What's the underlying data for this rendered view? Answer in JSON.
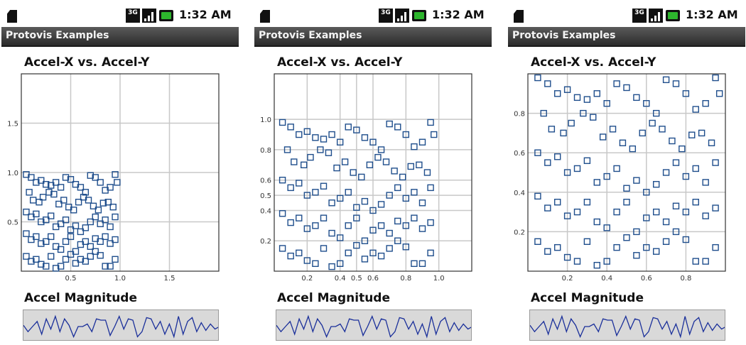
{
  "status_bar": {
    "time": "1:32 AM",
    "network": "3G",
    "icons": [
      "sd-card-icon",
      "network-3g-icon",
      "signal-icon",
      "battery-charging-icon"
    ]
  },
  "app_title": "Protovis Examples",
  "scatter_title": "Accel-X vs. Accel-Y",
  "accel_title": "Accel Magnitude",
  "colors": {
    "mark": "#1f4e8c",
    "grid": "#c8c8c8",
    "title_bar_top": "#5a5a5a",
    "title_bar_bottom": "#2c2c2c",
    "strip_background": "#d9d9d9"
  },
  "chart_data": [
    {
      "type": "scatter",
      "title": "Accel-X vs. Accel-Y",
      "xlim": [
        0,
        2
      ],
      "ylim": [
        0,
        2
      ],
      "xticks": [
        0.5,
        1.0,
        1.5
      ],
      "yticks": [
        0.5,
        1.0,
        1.5
      ],
      "xtick_labels": [
        "0.5",
        "1.0",
        "1.5"
      ],
      "ytick_labels": [
        "0.5",
        "1.0",
        "1.5"
      ],
      "grid": true,
      "marker": "square",
      "points": [
        [
          0.05,
          0.98
        ],
        [
          0.1,
          0.95
        ],
        [
          0.15,
          0.9
        ],
        [
          0.2,
          0.92
        ],
        [
          0.25,
          0.88
        ],
        [
          0.3,
          0.87
        ],
        [
          0.35,
          0.9
        ],
        [
          0.4,
          0.85
        ],
        [
          0.45,
          0.95
        ],
        [
          0.5,
          0.93
        ],
        [
          0.55,
          0.88
        ],
        [
          0.6,
          0.85
        ],
        [
          0.65,
          0.8
        ],
        [
          0.7,
          0.97
        ],
        [
          0.75,
          0.95
        ],
        [
          0.8,
          0.9
        ],
        [
          0.85,
          0.82
        ],
        [
          0.9,
          0.85
        ],
        [
          0.95,
          0.98
        ],
        [
          0.97,
          0.9
        ],
        [
          0.08,
          0.8
        ],
        [
          0.12,
          0.72
        ],
        [
          0.18,
          0.7
        ],
        [
          0.22,
          0.75
        ],
        [
          0.28,
          0.8
        ],
        [
          0.33,
          0.78
        ],
        [
          0.38,
          0.68
        ],
        [
          0.43,
          0.72
        ],
        [
          0.48,
          0.65
        ],
        [
          0.53,
          0.62
        ],
        [
          0.58,
          0.7
        ],
        [
          0.63,
          0.75
        ],
        [
          0.68,
          0.72
        ],
        [
          0.73,
          0.66
        ],
        [
          0.78,
          0.62
        ],
        [
          0.83,
          0.69
        ],
        [
          0.88,
          0.7
        ],
        [
          0.93,
          0.65
        ],
        [
          0.05,
          0.6
        ],
        [
          0.1,
          0.55
        ],
        [
          0.15,
          0.58
        ],
        [
          0.2,
          0.5
        ],
        [
          0.25,
          0.52
        ],
        [
          0.3,
          0.56
        ],
        [
          0.35,
          0.45
        ],
        [
          0.4,
          0.48
        ],
        [
          0.45,
          0.52
        ],
        [
          0.5,
          0.42
        ],
        [
          0.55,
          0.46
        ],
        [
          0.6,
          0.4
        ],
        [
          0.65,
          0.44
        ],
        [
          0.7,
          0.5
        ],
        [
          0.75,
          0.55
        ],
        [
          0.8,
          0.48
        ],
        [
          0.85,
          0.52
        ],
        [
          0.9,
          0.45
        ],
        [
          0.95,
          0.55
        ],
        [
          0.05,
          0.38
        ],
        [
          0.1,
          0.32
        ],
        [
          0.15,
          0.35
        ],
        [
          0.2,
          0.28
        ],
        [
          0.25,
          0.3
        ],
        [
          0.3,
          0.35
        ],
        [
          0.35,
          0.25
        ],
        [
          0.4,
          0.22
        ],
        [
          0.45,
          0.3
        ],
        [
          0.5,
          0.35
        ],
        [
          0.55,
          0.2
        ],
        [
          0.6,
          0.27
        ],
        [
          0.65,
          0.3
        ],
        [
          0.7,
          0.25
        ],
        [
          0.75,
          0.33
        ],
        [
          0.8,
          0.3
        ],
        [
          0.85,
          0.35
        ],
        [
          0.9,
          0.28
        ],
        [
          0.95,
          0.32
        ],
        [
          0.05,
          0.15
        ],
        [
          0.1,
          0.1
        ],
        [
          0.15,
          0.12
        ],
        [
          0.2,
          0.07
        ],
        [
          0.25,
          0.05
        ],
        [
          0.3,
          0.15
        ],
        [
          0.35,
          0.03
        ],
        [
          0.4,
          0.05
        ],
        [
          0.45,
          0.12
        ],
        [
          0.5,
          0.17
        ],
        [
          0.55,
          0.08
        ],
        [
          0.6,
          0.12
        ],
        [
          0.65,
          0.1
        ],
        [
          0.7,
          0.15
        ],
        [
          0.75,
          0.2
        ],
        [
          0.8,
          0.16
        ],
        [
          0.85,
          0.05
        ],
        [
          0.9,
          0.05
        ],
        [
          0.95,
          0.12
        ]
      ]
    },
    {
      "type": "scatter",
      "title": "Accel-X vs. Accel-Y",
      "xlim": [
        0,
        1.2
      ],
      "ylim": [
        0,
        1.3
      ],
      "xticks": [
        0.2,
        0.4,
        0.5,
        0.6,
        0.8,
        1.0
      ],
      "yticks": [
        0.2,
        0.4,
        0.5,
        0.6,
        0.8,
        1.0
      ],
      "xtick_labels": [
        "0.2",
        "0.4",
        "0.5",
        "0.6",
        "0.8",
        "1.0"
      ],
      "ytick_labels": [
        "0.2",
        "0.4",
        "0.5",
        "0.6",
        "0.8",
        "1.0"
      ],
      "grid": true,
      "marker": "square",
      "points": [
        [
          0.05,
          0.98
        ],
        [
          0.1,
          0.95
        ],
        [
          0.15,
          0.9
        ],
        [
          0.2,
          0.92
        ],
        [
          0.25,
          0.88
        ],
        [
          0.3,
          0.87
        ],
        [
          0.35,
          0.9
        ],
        [
          0.4,
          0.85
        ],
        [
          0.45,
          0.95
        ],
        [
          0.5,
          0.93
        ],
        [
          0.55,
          0.88
        ],
        [
          0.6,
          0.85
        ],
        [
          0.65,
          0.8
        ],
        [
          0.7,
          0.97
        ],
        [
          0.75,
          0.95
        ],
        [
          0.8,
          0.9
        ],
        [
          0.85,
          0.82
        ],
        [
          0.9,
          0.85
        ],
        [
          0.95,
          0.98
        ],
        [
          0.97,
          0.9
        ],
        [
          0.08,
          0.8
        ],
        [
          0.12,
          0.72
        ],
        [
          0.18,
          0.7
        ],
        [
          0.22,
          0.75
        ],
        [
          0.28,
          0.8
        ],
        [
          0.33,
          0.78
        ],
        [
          0.38,
          0.68
        ],
        [
          0.43,
          0.72
        ],
        [
          0.48,
          0.65
        ],
        [
          0.53,
          0.62
        ],
        [
          0.58,
          0.7
        ],
        [
          0.63,
          0.75
        ],
        [
          0.68,
          0.72
        ],
        [
          0.73,
          0.66
        ],
        [
          0.78,
          0.62
        ],
        [
          0.83,
          0.69
        ],
        [
          0.88,
          0.7
        ],
        [
          0.93,
          0.65
        ],
        [
          0.05,
          0.6
        ],
        [
          0.1,
          0.55
        ],
        [
          0.15,
          0.58
        ],
        [
          0.2,
          0.5
        ],
        [
          0.25,
          0.52
        ],
        [
          0.3,
          0.56
        ],
        [
          0.35,
          0.45
        ],
        [
          0.4,
          0.48
        ],
        [
          0.45,
          0.52
        ],
        [
          0.5,
          0.42
        ],
        [
          0.55,
          0.46
        ],
        [
          0.6,
          0.4
        ],
        [
          0.65,
          0.44
        ],
        [
          0.7,
          0.5
        ],
        [
          0.75,
          0.55
        ],
        [
          0.8,
          0.48
        ],
        [
          0.85,
          0.52
        ],
        [
          0.9,
          0.45
        ],
        [
          0.95,
          0.55
        ],
        [
          0.05,
          0.38
        ],
        [
          0.1,
          0.32
        ],
        [
          0.15,
          0.35
        ],
        [
          0.2,
          0.28
        ],
        [
          0.25,
          0.3
        ],
        [
          0.3,
          0.35
        ],
        [
          0.35,
          0.25
        ],
        [
          0.4,
          0.22
        ],
        [
          0.45,
          0.3
        ],
        [
          0.5,
          0.35
        ],
        [
          0.55,
          0.2
        ],
        [
          0.6,
          0.27
        ],
        [
          0.65,
          0.3
        ],
        [
          0.7,
          0.25
        ],
        [
          0.75,
          0.33
        ],
        [
          0.8,
          0.3
        ],
        [
          0.85,
          0.35
        ],
        [
          0.9,
          0.28
        ],
        [
          0.95,
          0.32
        ],
        [
          0.05,
          0.15
        ],
        [
          0.1,
          0.1
        ],
        [
          0.15,
          0.12
        ],
        [
          0.2,
          0.07
        ],
        [
          0.25,
          0.05
        ],
        [
          0.3,
          0.15
        ],
        [
          0.35,
          0.03
        ],
        [
          0.4,
          0.05
        ],
        [
          0.45,
          0.12
        ],
        [
          0.5,
          0.17
        ],
        [
          0.55,
          0.08
        ],
        [
          0.6,
          0.12
        ],
        [
          0.65,
          0.1
        ],
        [
          0.7,
          0.15
        ],
        [
          0.75,
          0.2
        ],
        [
          0.8,
          0.16
        ],
        [
          0.85,
          0.05
        ],
        [
          0.9,
          0.05
        ],
        [
          0.95,
          0.12
        ]
      ]
    },
    {
      "type": "scatter",
      "title": "Accel-X vs. Accel-Y",
      "xlim": [
        0,
        1.0
      ],
      "ylim": [
        0,
        1.0
      ],
      "xticks": [
        0.2,
        0.4,
        0.6,
        0.8
      ],
      "yticks": [
        0.2,
        0.4,
        0.6,
        0.8
      ],
      "xtick_labels": [
        "0.2",
        "0.4",
        "0.6",
        "0.8"
      ],
      "ytick_labels": [
        "0.2",
        "0.4",
        "0.6",
        "0.8"
      ],
      "grid": true,
      "marker": "square",
      "points": [
        [
          0.05,
          0.98
        ],
        [
          0.1,
          0.95
        ],
        [
          0.15,
          0.9
        ],
        [
          0.2,
          0.92
        ],
        [
          0.25,
          0.88
        ],
        [
          0.3,
          0.87
        ],
        [
          0.35,
          0.9
        ],
        [
          0.4,
          0.85
        ],
        [
          0.45,
          0.95
        ],
        [
          0.5,
          0.93
        ],
        [
          0.55,
          0.88
        ],
        [
          0.6,
          0.85
        ],
        [
          0.65,
          0.8
        ],
        [
          0.7,
          0.97
        ],
        [
          0.75,
          0.95
        ],
        [
          0.8,
          0.9
        ],
        [
          0.85,
          0.82
        ],
        [
          0.9,
          0.85
        ],
        [
          0.95,
          0.98
        ],
        [
          0.97,
          0.9
        ],
        [
          0.08,
          0.8
        ],
        [
          0.12,
          0.72
        ],
        [
          0.18,
          0.7
        ],
        [
          0.22,
          0.75
        ],
        [
          0.28,
          0.8
        ],
        [
          0.33,
          0.78
        ],
        [
          0.38,
          0.68
        ],
        [
          0.43,
          0.72
        ],
        [
          0.48,
          0.65
        ],
        [
          0.53,
          0.62
        ],
        [
          0.58,
          0.7
        ],
        [
          0.63,
          0.75
        ],
        [
          0.68,
          0.72
        ],
        [
          0.73,
          0.66
        ],
        [
          0.78,
          0.62
        ],
        [
          0.83,
          0.69
        ],
        [
          0.88,
          0.7
        ],
        [
          0.93,
          0.65
        ],
        [
          0.05,
          0.6
        ],
        [
          0.1,
          0.55
        ],
        [
          0.15,
          0.58
        ],
        [
          0.2,
          0.5
        ],
        [
          0.25,
          0.52
        ],
        [
          0.3,
          0.56
        ],
        [
          0.35,
          0.45
        ],
        [
          0.4,
          0.48
        ],
        [
          0.45,
          0.52
        ],
        [
          0.5,
          0.42
        ],
        [
          0.55,
          0.46
        ],
        [
          0.6,
          0.4
        ],
        [
          0.65,
          0.44
        ],
        [
          0.7,
          0.5
        ],
        [
          0.75,
          0.55
        ],
        [
          0.8,
          0.48
        ],
        [
          0.85,
          0.52
        ],
        [
          0.9,
          0.45
        ],
        [
          0.95,
          0.55
        ],
        [
          0.05,
          0.38
        ],
        [
          0.1,
          0.32
        ],
        [
          0.15,
          0.35
        ],
        [
          0.2,
          0.28
        ],
        [
          0.25,
          0.3
        ],
        [
          0.3,
          0.35
        ],
        [
          0.35,
          0.25
        ],
        [
          0.4,
          0.22
        ],
        [
          0.45,
          0.3
        ],
        [
          0.5,
          0.35
        ],
        [
          0.55,
          0.2
        ],
        [
          0.6,
          0.27
        ],
        [
          0.65,
          0.3
        ],
        [
          0.7,
          0.25
        ],
        [
          0.75,
          0.33
        ],
        [
          0.8,
          0.3
        ],
        [
          0.85,
          0.35
        ],
        [
          0.9,
          0.28
        ],
        [
          0.95,
          0.32
        ],
        [
          0.05,
          0.15
        ],
        [
          0.1,
          0.1
        ],
        [
          0.15,
          0.12
        ],
        [
          0.2,
          0.07
        ],
        [
          0.25,
          0.05
        ],
        [
          0.3,
          0.15
        ],
        [
          0.35,
          0.03
        ],
        [
          0.4,
          0.05
        ],
        [
          0.45,
          0.12
        ],
        [
          0.5,
          0.17
        ],
        [
          0.55,
          0.08
        ],
        [
          0.6,
          0.12
        ],
        [
          0.65,
          0.1
        ],
        [
          0.7,
          0.15
        ],
        [
          0.75,
          0.2
        ],
        [
          0.8,
          0.16
        ],
        [
          0.85,
          0.05
        ],
        [
          0.9,
          0.05
        ],
        [
          0.95,
          0.12
        ]
      ]
    },
    {
      "type": "line",
      "title": "Accel Magnitude",
      "ylim": [
        0,
        1
      ],
      "series": [
        {
          "values": [
            0.55,
            0.3,
            0.5,
            0.7,
            0.2,
            0.8,
            0.4,
            0.9,
            0.3,
            0.8,
            0.55,
            0.1,
            0.5,
            0.5,
            0.6,
            0.3,
            0.8,
            0.75,
            0.75,
            0.15,
            0.5,
            0.9,
            0.4,
            0.8,
            0.75,
            0.1,
            0.3,
            0.85,
            0.8,
            0.4,
            0.7,
            0.2,
            0.6,
            0.1,
            0.9,
            0.2,
            0.7,
            0.85,
            0.3,
            0.65,
            0.35,
            0.6,
            0.4,
            0.5
          ]
        }
      ]
    }
  ]
}
